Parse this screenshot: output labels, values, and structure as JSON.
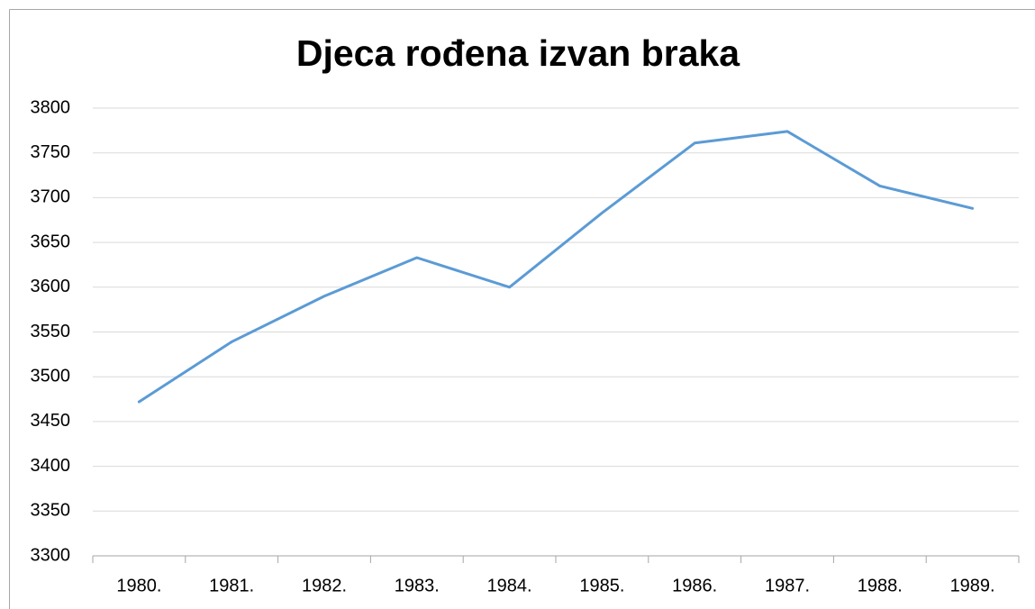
{
  "chart_data": {
    "type": "line",
    "title": "Djeca rođena izvan braka",
    "categories": [
      "1980.",
      "1981.",
      "1982.",
      "1983.",
      "1984.",
      "1985.",
      "1986.",
      "1987.",
      "1988.",
      "1989."
    ],
    "values": [
      3472,
      3539,
      3590,
      3633,
      3600,
      3683,
      3761,
      3774,
      3713,
      3688
    ],
    "color": "#5b9bd5",
    "ylim": [
      3300,
      3800
    ],
    "yticks": [
      3300,
      3350,
      3400,
      3450,
      3500,
      3550,
      3600,
      3650,
      3700,
      3750,
      3800
    ],
    "grid": true
  }
}
